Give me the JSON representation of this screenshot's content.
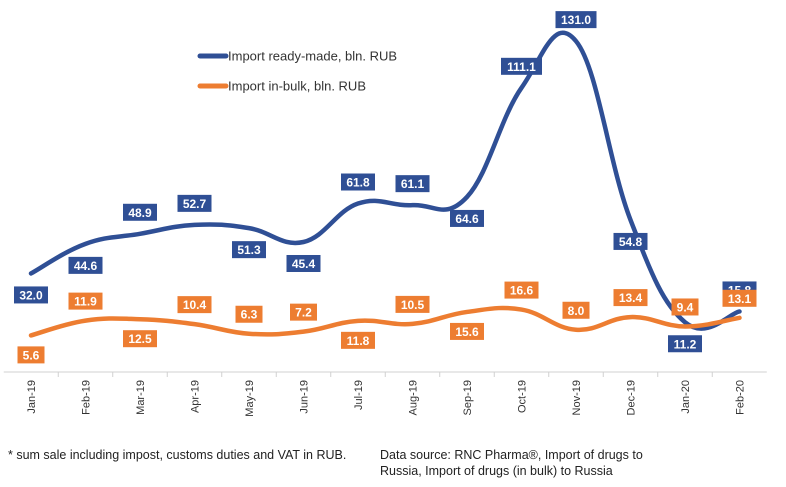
{
  "chart_data": {
    "type": "line",
    "title": "",
    "xlabel": "",
    "ylabel": "",
    "ylim": [
      -10,
      140
    ],
    "grid": false,
    "legend_position": "top-center",
    "categories": [
      "Jan-19",
      "Feb-19",
      "Mar-19",
      "Apr-19",
      "May-19",
      "Jun-19",
      "Jul-19",
      "Aug-19",
      "Sep-19",
      "Oct-19",
      "Nov-19",
      "Dec-19",
      "Jan-20",
      "Feb-20"
    ],
    "series": [
      {
        "name": "Import ready-made, bln. RUB",
        "color": "#2f4f95",
        "values": [
          32.0,
          44.6,
          48.9,
          52.7,
          51.3,
          45.4,
          61.8,
          61.1,
          64.6,
          111.1,
          131.0,
          54.8,
          11.2,
          15.8
        ],
        "labels": [
          "32.0",
          "44.6",
          "48.9",
          "52.7",
          "51.3",
          "45.4",
          "61.8",
          "61.1",
          "64.6",
          "111.1",
          "131.0",
          "54.8",
          "11.2",
          "15.8"
        ]
      },
      {
        "name": "Import in-bulk, bln. RUB",
        "color": "#ed7d31",
        "values": [
          5.6,
          11.9,
          12.5,
          10.4,
          6.3,
          7.2,
          11.8,
          10.5,
          15.6,
          16.6,
          8.0,
          13.4,
          9.4,
          13.1
        ],
        "labels": [
          "5.6",
          "11.9",
          "12.5",
          "10.4",
          "6.3",
          "7.2",
          "11.8",
          "10.5",
          "15.6",
          "16.6",
          "8.0",
          "13.4",
          "9.4",
          "13.1"
        ]
      }
    ]
  },
  "footnote": "* sum sale including impost, customs duties and VAT in RUB.",
  "source": "Data source: RNC Pharma®, Import of drugs to Russia, Import of drugs (in bulk) to Russia"
}
